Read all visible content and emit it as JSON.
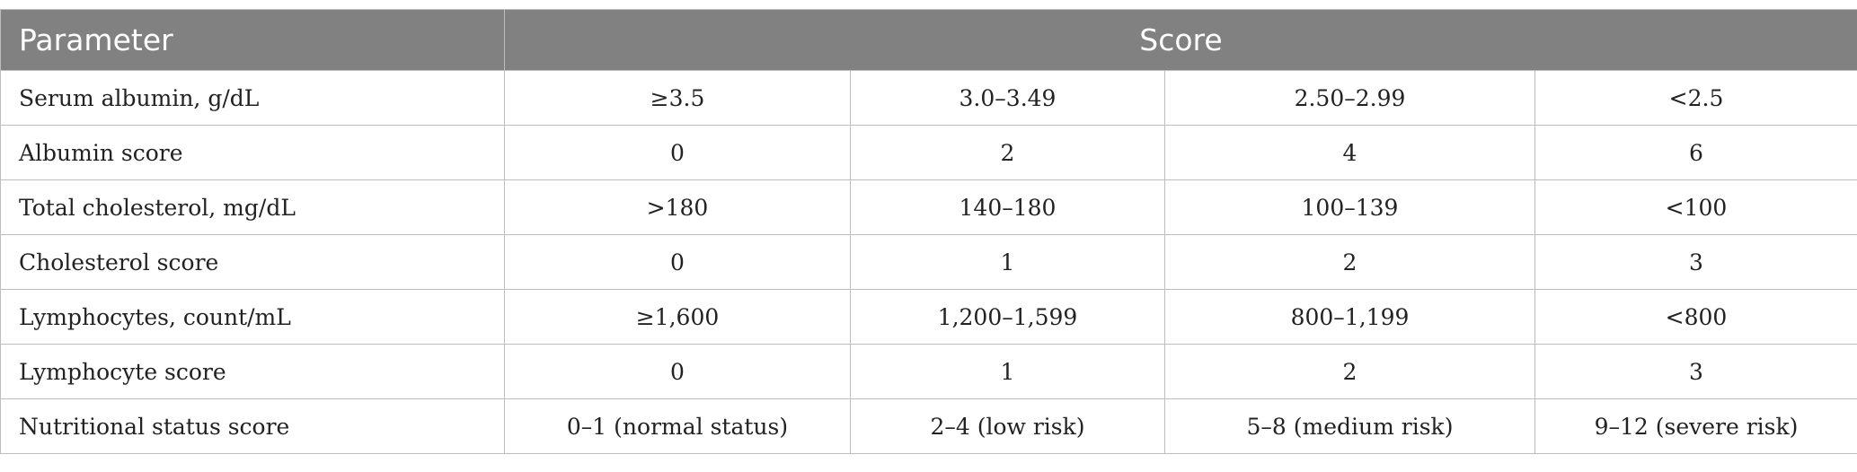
{
  "header": {
    "parameter": "Parameter",
    "score": "Score"
  },
  "rows": [
    {
      "parameter": "Serum albumin, g/dL",
      "values": [
        "≥3.5",
        "3.0–3.49",
        "2.50–2.99",
        "<2.5"
      ]
    },
    {
      "parameter": "Albumin score",
      "values": [
        "0",
        "2",
        "4",
        "6"
      ]
    },
    {
      "parameter": "Total cholesterol, mg/dL",
      "values": [
        ">180",
        "140–180",
        "100–139",
        "<100"
      ]
    },
    {
      "parameter": "Cholesterol score",
      "values": [
        "0",
        "1",
        "2",
        "3"
      ]
    },
    {
      "parameter": "Lymphocytes, count/mL",
      "values": [
        "≥1,600",
        "1,200–1,599",
        "800–1,199",
        "<800"
      ]
    },
    {
      "parameter": "Lymphocyte score",
      "values": [
        "0",
        "1",
        "2",
        "3"
      ]
    },
    {
      "parameter": "Nutritional status score",
      "values": [
        "0–1 (normal status)",
        "2–4 (low risk)",
        "5–8 (medium risk)",
        "9–12 (severe risk)"
      ]
    }
  ],
  "colors": {
    "header_bg": "#818181",
    "header_text": "#ffffff",
    "grid": "#bdbdbd"
  }
}
